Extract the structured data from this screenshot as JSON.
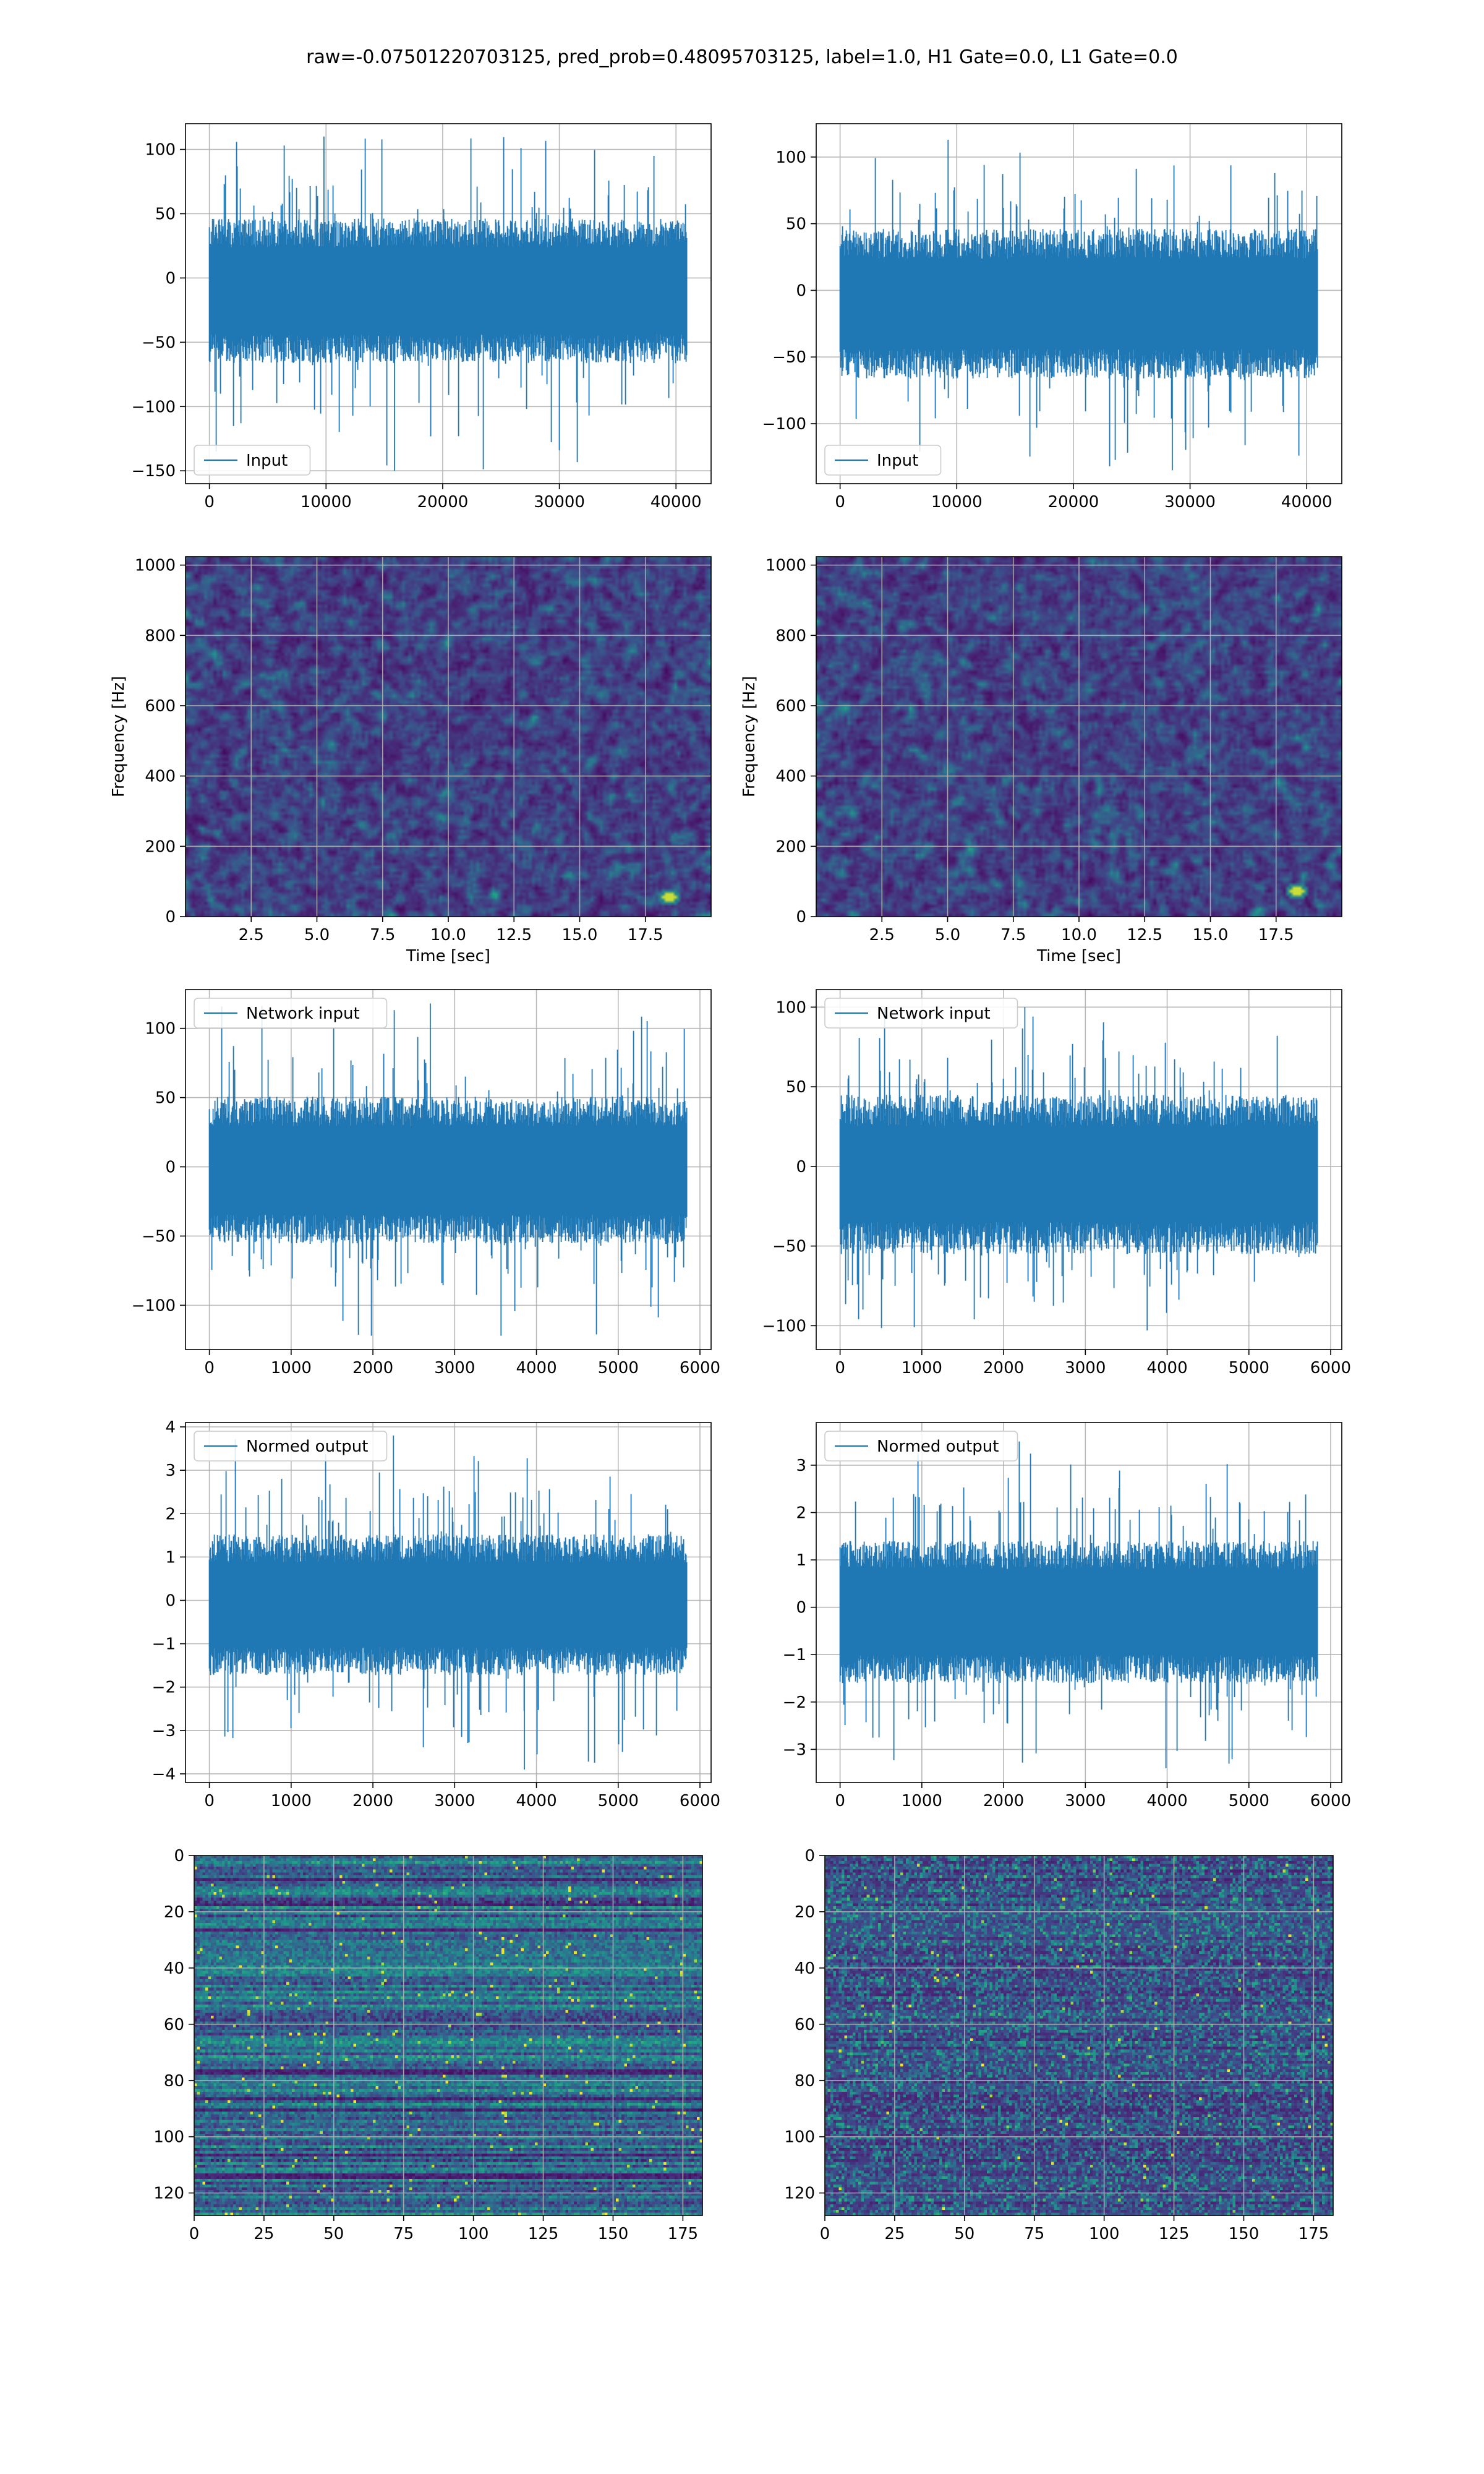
{
  "figure": {
    "title": "raw=-0.07501220703125, pred_prob=0.48095703125, label=1.0, H1 Gate=0.0, L1 Gate=0.0"
  },
  "chart_data": [
    {
      "id": "c0",
      "kind": "signal",
      "type": "line",
      "column": 0,
      "row": 0,
      "legend": "Input",
      "legend_loc": "lower-left",
      "color": "#1f77b4",
      "grid": true,
      "n_samples": 40960,
      "x_range": [
        0,
        40960
      ],
      "env": {
        "center": -10,
        "low": -55,
        "high": 35,
        "spike_low": -150,
        "spike_high": 110
      },
      "xlim": [
        -2048,
        43008
      ],
      "ylim": [
        -160,
        120
      ],
      "xticks": [
        0,
        10000,
        20000,
        30000,
        40000
      ],
      "xtick_labels": [
        "0",
        "10000",
        "20000",
        "30000",
        "40000"
      ],
      "yticks": [
        -150,
        -100,
        -50,
        0,
        50,
        100
      ],
      "ytick_labels": [
        "−150",
        "−100",
        "−50",
        "0",
        "50",
        "100"
      ]
    },
    {
      "id": "c1",
      "kind": "signal",
      "type": "line",
      "column": 1,
      "row": 0,
      "legend": "Input",
      "legend_loc": "lower-left",
      "color": "#1f77b4",
      "grid": true,
      "n_samples": 40960,
      "x_range": [
        0,
        40960
      ],
      "env": {
        "center": -10,
        "low": -55,
        "high": 35,
        "spike_low": -135,
        "spike_high": 113
      },
      "xlim": [
        -2048,
        43008
      ],
      "ylim": [
        -145,
        125
      ],
      "xticks": [
        0,
        10000,
        20000,
        30000,
        40000
      ],
      "xtick_labels": [
        "0",
        "10000",
        "20000",
        "30000",
        "40000"
      ],
      "yticks": [
        -100,
        -50,
        0,
        50,
        100
      ],
      "ytick_labels": [
        "−100",
        "−50",
        "0",
        "50",
        "100"
      ]
    },
    {
      "id": "c2",
      "kind": "spectrogram",
      "type": "heatmap",
      "column": 0,
      "row": 1,
      "xlabel": "Time [sec]",
      "ylabel": "Frequency [Hz]",
      "colormap": "viridis",
      "grid": true,
      "xlim": [
        0,
        20
      ],
      "ylim": [
        0,
        1024
      ],
      "xticks": [
        2.5,
        5.0,
        7.5,
        10.0,
        12.5,
        15.0,
        17.5
      ],
      "xtick_labels": [
        "2.5",
        "5.0",
        "7.5",
        "10.0",
        "12.5",
        "15.0",
        "17.5"
      ],
      "yticks": [
        0,
        200,
        400,
        600,
        800,
        1000
      ],
      "ytick_labels": [
        "0",
        "200",
        "400",
        "600",
        "800",
        "1000"
      ],
      "hotspot": {
        "time": 18.3,
        "freq": 60
      }
    },
    {
      "id": "c3",
      "kind": "spectrogram",
      "type": "heatmap",
      "column": 1,
      "row": 1,
      "xlabel": "Time [sec]",
      "ylabel": "Frequency [Hz]",
      "colormap": "viridis",
      "grid": true,
      "xlim": [
        0,
        20
      ],
      "ylim": [
        0,
        1024
      ],
      "xticks": [
        2.5,
        5.0,
        7.5,
        10.0,
        12.5,
        15.0,
        17.5
      ],
      "xtick_labels": [
        "2.5",
        "5.0",
        "7.5",
        "10.0",
        "12.5",
        "15.0",
        "17.5"
      ],
      "yticks": [
        0,
        200,
        400,
        600,
        800,
        1000
      ],
      "ytick_labels": [
        "0",
        "200",
        "400",
        "600",
        "800",
        "1000"
      ],
      "hotspot": {
        "time": 18.2,
        "freq": 75
      }
    },
    {
      "id": "c4",
      "kind": "signal",
      "type": "line",
      "column": 0,
      "row": 2,
      "legend": "Network input",
      "legend_loc": "upper-left",
      "color": "#1f77b4",
      "grid": true,
      "n_samples": 5844,
      "x_range": [
        0,
        5844
      ],
      "env": {
        "center": -5,
        "low": -45,
        "high": 40,
        "spike_low": -122,
        "spike_high": 118
      },
      "xlim": [
        -292,
        6136
      ],
      "ylim": [
        -132,
        128
      ],
      "xticks": [
        0,
        1000,
        2000,
        3000,
        4000,
        5000,
        6000
      ],
      "xtick_labels": [
        "0",
        "1000",
        "2000",
        "3000",
        "4000",
        "5000",
        "6000"
      ],
      "yticks": [
        -100,
        -50,
        0,
        50,
        100
      ],
      "ytick_labels": [
        "−100",
        "−50",
        "0",
        "50",
        "100"
      ]
    },
    {
      "id": "c5",
      "kind": "signal",
      "type": "line",
      "column": 1,
      "row": 2,
      "legend": "Network input",
      "legend_loc": "upper-left",
      "color": "#1f77b4",
      "grid": true,
      "n_samples": 5844,
      "x_range": [
        0,
        5844
      ],
      "env": {
        "center": -5,
        "low": -45,
        "high": 35,
        "spike_low": -103,
        "spike_high": 100
      },
      "xlim": [
        -292,
        6136
      ],
      "ylim": [
        -115,
        111
      ],
      "xticks": [
        0,
        1000,
        2000,
        3000,
        4000,
        5000,
        6000
      ],
      "xtick_labels": [
        "0",
        "1000",
        "2000",
        "3000",
        "4000",
        "5000",
        "6000"
      ],
      "yticks": [
        -100,
        -50,
        0,
        50,
        100
      ],
      "ytick_labels": [
        "−100",
        "−50",
        "0",
        "50",
        "100"
      ]
    },
    {
      "id": "c6",
      "kind": "signal",
      "type": "line",
      "column": 0,
      "row": 3,
      "legend": "Normed output",
      "legend_loc": "upper-left",
      "color": "#1f77b4",
      "grid": true,
      "n_samples": 5844,
      "x_range": [
        0,
        5844
      ],
      "env": {
        "center": -0.1,
        "low": -1.4,
        "high": 1.2,
        "spike_low": -3.9,
        "spike_high": 3.8
      },
      "xlim": [
        -292,
        6136
      ],
      "ylim": [
        -4.2,
        4.1
      ],
      "xticks": [
        0,
        1000,
        2000,
        3000,
        4000,
        5000,
        6000
      ],
      "xtick_labels": [
        "0",
        "1000",
        "2000",
        "3000",
        "4000",
        "5000",
        "6000"
      ],
      "yticks": [
        -4,
        -3,
        -2,
        -1,
        0,
        1,
        2,
        3,
        4
      ],
      "ytick_labels": [
        "−4",
        "−3",
        "−2",
        "−1",
        "0",
        "1",
        "2",
        "3",
        "4"
      ]
    },
    {
      "id": "c7",
      "kind": "signal",
      "type": "line",
      "column": 1,
      "row": 3,
      "legend": "Normed output",
      "legend_loc": "upper-left",
      "color": "#1f77b4",
      "grid": true,
      "n_samples": 5844,
      "x_range": [
        0,
        5844
      ],
      "env": {
        "center": -0.1,
        "low": -1.3,
        "high": 1.1,
        "spike_low": -3.4,
        "spike_high": 3.5
      },
      "xlim": [
        -292,
        6136
      ],
      "ylim": [
        -3.7,
        3.9
      ],
      "xticks": [
        0,
        1000,
        2000,
        3000,
        4000,
        5000,
        6000
      ],
      "xtick_labels": [
        "0",
        "1000",
        "2000",
        "3000",
        "4000",
        "5000",
        "6000"
      ],
      "yticks": [
        -3,
        -2,
        -1,
        0,
        1,
        2,
        3
      ],
      "ytick_labels": [
        "−3",
        "−2",
        "−1",
        "0",
        "1",
        "2",
        "3"
      ]
    },
    {
      "id": "c8",
      "kind": "matrix",
      "type": "heatmap",
      "column": 0,
      "row": 4,
      "colormap": "viridis",
      "grid": true,
      "rows": 128,
      "cols": 182,
      "xlim": [
        0,
        182
      ],
      "ylim": [
        128,
        0
      ],
      "brightness": "high",
      "xticks": [
        0,
        25,
        50,
        75,
        100,
        125,
        150,
        175
      ],
      "xtick_labels": [
        "0",
        "25",
        "50",
        "75",
        "100",
        "125",
        "150",
        "175"
      ],
      "yticks": [
        0,
        20,
        40,
        60,
        80,
        100,
        120
      ],
      "ytick_labels": [
        "0",
        "20",
        "40",
        "60",
        "80",
        "100",
        "120"
      ]
    },
    {
      "id": "c9",
      "kind": "matrix",
      "type": "heatmap",
      "column": 1,
      "row": 4,
      "colormap": "viridis",
      "grid": true,
      "rows": 128,
      "cols": 182,
      "xlim": [
        0,
        182
      ],
      "ylim": [
        128,
        0
      ],
      "brightness": "low",
      "xticks": [
        0,
        25,
        50,
        75,
        100,
        125,
        150,
        175
      ],
      "xtick_labels": [
        "0",
        "25",
        "50",
        "75",
        "100",
        "125",
        "150",
        "175"
      ],
      "yticks": [
        0,
        20,
        40,
        60,
        80,
        100,
        120
      ],
      "ytick_labels": [
        "0",
        "20",
        "40",
        "60",
        "80",
        "100",
        "120"
      ]
    }
  ]
}
